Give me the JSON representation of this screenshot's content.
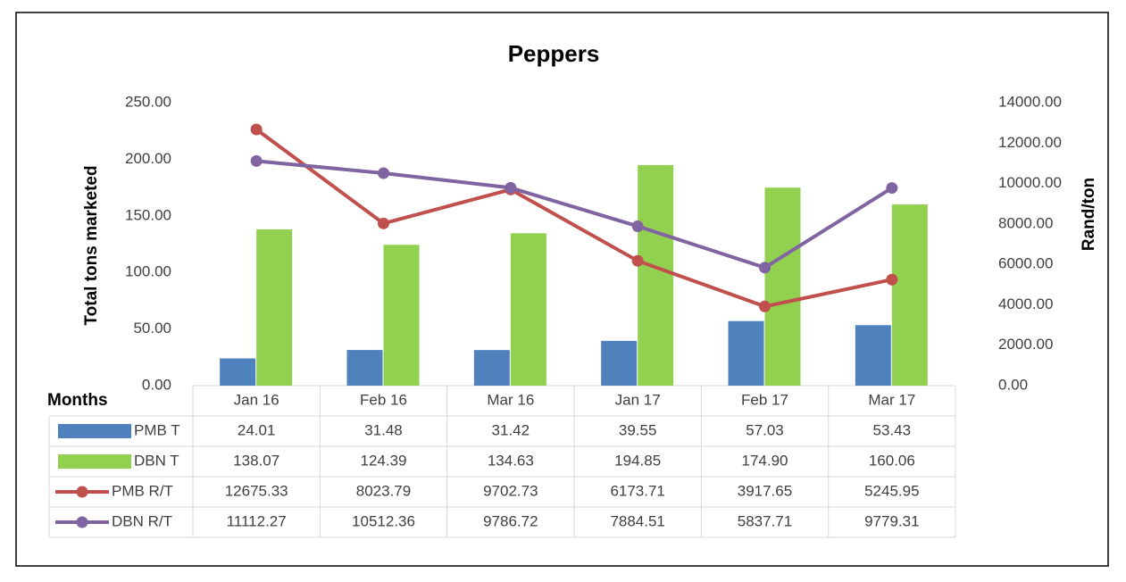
{
  "chart_data": {
    "type": "bar",
    "title": "Peppers",
    "y_label": "Total tons marketed",
    "y2_label": "Rand/ton",
    "table_header": "Months",
    "categories": [
      "Jan 16",
      "Feb 16",
      "Mar 16",
      "Jan 17",
      "Feb 17",
      "Mar 17"
    ],
    "series": [
      {
        "name": "PMB T",
        "type": "bar",
        "color": "#4f81bd",
        "values": [
          24.01,
          31.48,
          31.42,
          39.55,
          57.03,
          53.43
        ],
        "value_labels": [
          "24.01",
          "31.48",
          "31.42",
          "39.55",
          "57.03",
          "53.43"
        ]
      },
      {
        "name": "DBN T",
        "type": "bar",
        "color": "#92d050",
        "values": [
          138.07,
          124.39,
          134.63,
          194.85,
          174.9,
          160.06
        ],
        "value_labels": [
          "138.07",
          "124.39",
          "134.63",
          "194.85",
          "174.90",
          "160.06"
        ]
      },
      {
        "name": "PMB R/T",
        "type": "line",
        "axis": "y2",
        "color": "#c0504d",
        "values": [
          12675.33,
          8023.79,
          9702.73,
          6173.71,
          3917.65,
          5245.95
        ],
        "value_labels": [
          "12675.33",
          "8023.79",
          "9702.73",
          "6173.71",
          "3917.65",
          "5245.95"
        ]
      },
      {
        "name": "DBN R/T",
        "type": "line",
        "axis": "y2",
        "color": "#8064a2",
        "values": [
          11112.27,
          10512.36,
          9786.72,
          7884.51,
          5837.71,
          9779.31
        ],
        "value_labels": [
          "11112.27",
          "10512.36",
          "9786.72",
          "7884.51",
          "5837.71",
          "9779.31"
        ]
      }
    ],
    "ylim": [
      0,
      250
    ],
    "yticks": [
      {
        "value": 0,
        "label": "0.00"
      },
      {
        "value": 50,
        "label": "50.00"
      },
      {
        "value": 100,
        "label": "100.00"
      },
      {
        "value": 150,
        "label": "150.00"
      },
      {
        "value": 200,
        "label": "200.00"
      },
      {
        "value": 250,
        "label": "250.00"
      }
    ],
    "y2lim": [
      0,
      14000
    ],
    "y2ticks": [
      {
        "value": 0,
        "label": "0.00"
      },
      {
        "value": 2000,
        "label": "2000.00"
      },
      {
        "value": 4000,
        "label": "4000.00"
      },
      {
        "value": 6000,
        "label": "6000.00"
      },
      {
        "value": 8000,
        "label": "8000.00"
      },
      {
        "value": 10000,
        "label": "10000.00"
      },
      {
        "value": 12000,
        "label": "12000.00"
      },
      {
        "value": 14000,
        "label": "14000.00"
      }
    ],
    "grid": false
  }
}
